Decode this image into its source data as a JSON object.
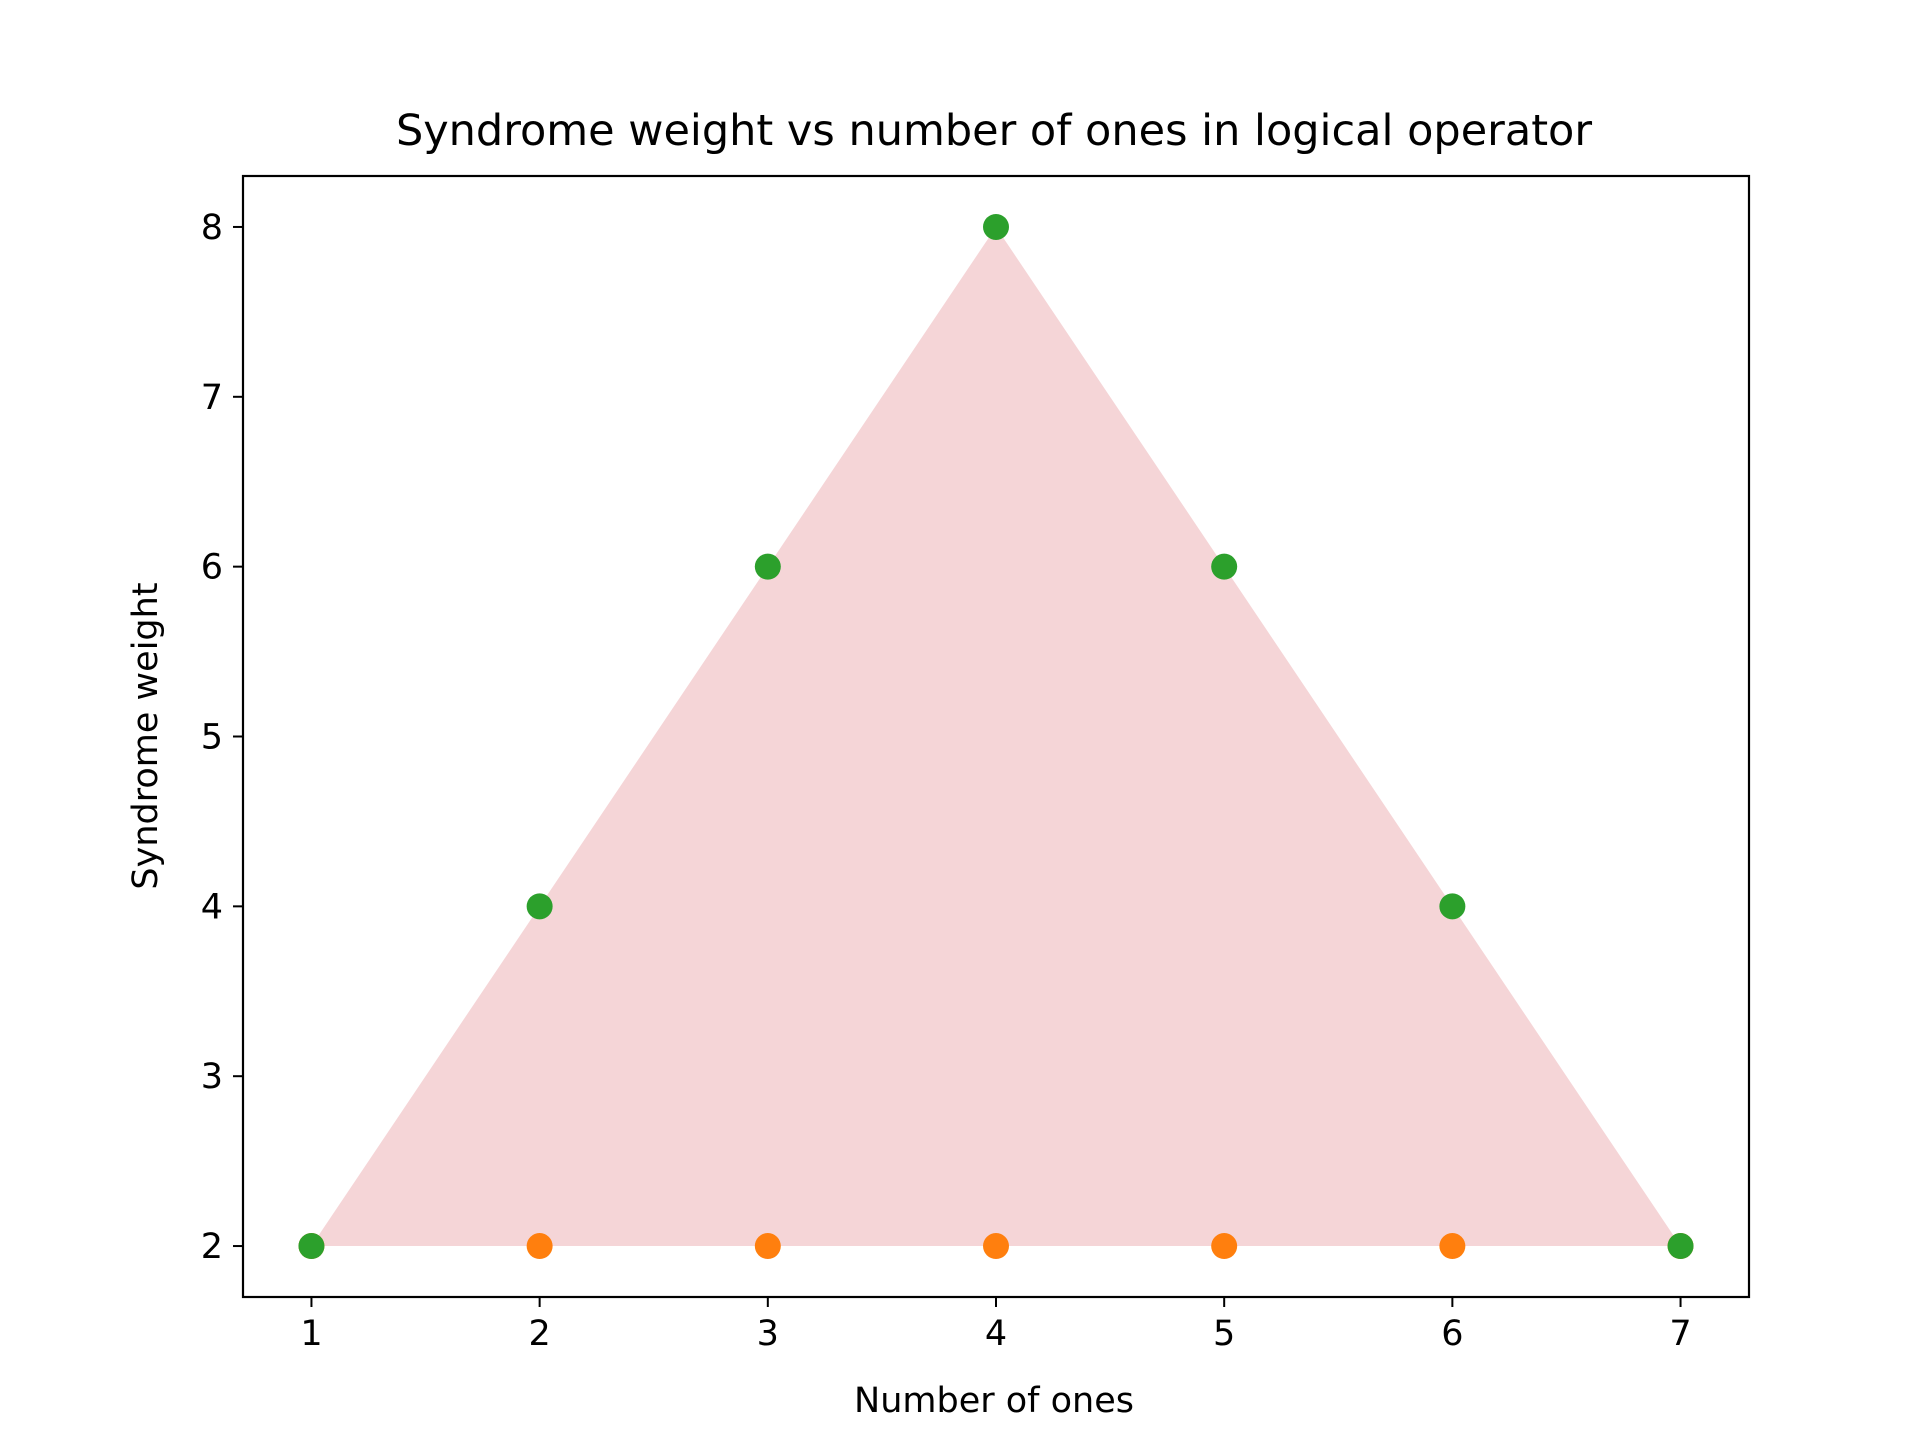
{
  "chart_data": {
    "type": "scatter",
    "title": "Syndrome weight vs number of ones in logical operator",
    "xlabel": "Number of ones",
    "ylabel": "Syndrome weight",
    "xlim": [
      0.7,
      7.3
    ],
    "ylim": [
      1.7,
      8.3
    ],
    "xticks": [
      1,
      2,
      3,
      4,
      5,
      6,
      7
    ],
    "yticks": [
      2,
      3,
      4,
      5,
      6,
      7,
      8
    ],
    "grid": false,
    "fill_region": {
      "color": "#f5d5d7",
      "points": [
        [
          1,
          2
        ],
        [
          4,
          8
        ],
        [
          7,
          2
        ]
      ]
    },
    "series": [
      {
        "color": "#ff7f0e",
        "x": [
          1,
          2,
          3,
          4,
          5,
          6,
          7
        ],
        "y": [
          2,
          2,
          2,
          2,
          2,
          2,
          2
        ]
      },
      {
        "color": "#2ca02c",
        "x": [
          1,
          2,
          3,
          4,
          5,
          6,
          7
        ],
        "y": [
          2,
          4,
          6,
          8,
          6,
          4,
          2
        ]
      }
    ]
  }
}
